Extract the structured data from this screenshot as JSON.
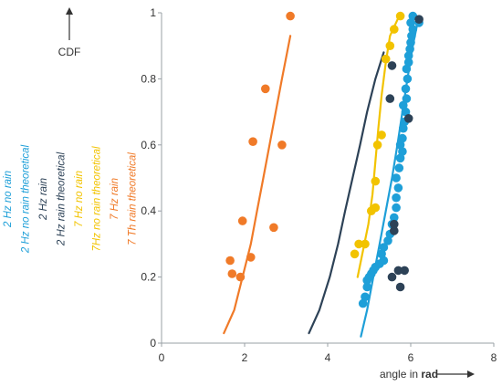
{
  "chart_data": {
    "type": "scatter",
    "x_axis": {
      "title": "angle in ",
      "title_bold": "rad",
      "range": [
        0,
        8
      ],
      "ticks": [
        0,
        2,
        4,
        6,
        8
      ],
      "tick_labels": [
        "0",
        "2",
        "4",
        "6",
        "8"
      ]
    },
    "y_axis": {
      "title": "CDF",
      "range": [
        0,
        1
      ],
      "ticks": [
        0,
        0.2,
        0.4,
        0.6,
        0.8,
        1
      ],
      "tick_labels": [
        "0",
        "0.2",
        "0.4",
        "0.6",
        "0.8",
        "1"
      ]
    },
    "grid": false,
    "legend_position": "left-vertical",
    "series": [
      {
        "name": "2 Hz no rain",
        "kind": "points",
        "color": "#1e9fd8",
        "points": [
          [
            4.85,
            0.12
          ],
          [
            4.9,
            0.14
          ],
          [
            4.95,
            0.17
          ],
          [
            4.95,
            0.19
          ],
          [
            5.0,
            0.2
          ],
          [
            5.05,
            0.21
          ],
          [
            5.1,
            0.22
          ],
          [
            5.15,
            0.23
          ],
          [
            5.25,
            0.24
          ],
          [
            5.35,
            0.25
          ],
          [
            5.3,
            0.27
          ],
          [
            5.35,
            0.29
          ],
          [
            5.45,
            0.31
          ],
          [
            5.5,
            0.33
          ],
          [
            5.55,
            0.36
          ],
          [
            5.6,
            0.38
          ],
          [
            5.65,
            0.41
          ],
          [
            5.65,
            0.44
          ],
          [
            5.7,
            0.47
          ],
          [
            5.65,
            0.5
          ],
          [
            5.72,
            0.53
          ],
          [
            5.75,
            0.56
          ],
          [
            5.8,
            0.58
          ],
          [
            5.75,
            0.6
          ],
          [
            5.8,
            0.62
          ],
          [
            5.82,
            0.65
          ],
          [
            5.85,
            0.67
          ],
          [
            5.88,
            0.7
          ],
          [
            5.82,
            0.72
          ],
          [
            5.9,
            0.74
          ],
          [
            5.88,
            0.77
          ],
          [
            5.92,
            0.8
          ],
          [
            5.9,
            0.83
          ],
          [
            5.95,
            0.85
          ],
          [
            5.95,
            0.87
          ],
          [
            5.98,
            0.89
          ],
          [
            6.0,
            0.91
          ],
          [
            6.02,
            0.93
          ],
          [
            6.05,
            0.95
          ],
          [
            6.0,
            0.97
          ],
          [
            6.05,
            0.99
          ],
          [
            6.2,
            0.97
          ]
        ]
      },
      {
        "name": "2 Hz no rain theoretical",
        "kind": "line",
        "color": "#1e9fd8",
        "points": [
          [
            4.8,
            0.02
          ],
          [
            4.95,
            0.1
          ],
          [
            5.1,
            0.2
          ],
          [
            5.25,
            0.3
          ],
          [
            5.4,
            0.4
          ],
          [
            5.55,
            0.5
          ],
          [
            5.68,
            0.6
          ],
          [
            5.8,
            0.7
          ],
          [
            5.92,
            0.8
          ],
          [
            6.05,
            0.9
          ],
          [
            6.18,
            0.98
          ]
        ]
      },
      {
        "name": "2 Hz rain",
        "kind": "points",
        "color": "#2d4257",
        "points": [
          [
            5.55,
            0.2
          ],
          [
            5.75,
            0.17
          ],
          [
            5.7,
            0.22
          ],
          [
            5.85,
            0.22
          ],
          [
            5.6,
            0.34
          ],
          [
            5.6,
            0.36
          ],
          [
            5.5,
            0.74
          ],
          [
            5.55,
            0.84
          ],
          [
            5.95,
            0.68
          ],
          [
            6.2,
            0.98
          ]
        ]
      },
      {
        "name": "2 Hz rain theoretical",
        "kind": "line",
        "color": "#2d4257",
        "points": [
          [
            3.55,
            0.03
          ],
          [
            3.8,
            0.1
          ],
          [
            4.05,
            0.2
          ],
          [
            4.25,
            0.3
          ],
          [
            4.42,
            0.4
          ],
          [
            4.6,
            0.5
          ],
          [
            4.78,
            0.6
          ],
          [
            4.95,
            0.7
          ],
          [
            5.15,
            0.8
          ],
          [
            5.35,
            0.88
          ]
        ]
      },
      {
        "name": "7 Hz no rain",
        "kind": "points",
        "color": "#f2c300",
        "points": [
          [
            4.65,
            0.27
          ],
          [
            4.75,
            0.3
          ],
          [
            4.9,
            0.3
          ],
          [
            5.05,
            0.4
          ],
          [
            5.15,
            0.41
          ],
          [
            5.15,
            0.49
          ],
          [
            5.2,
            0.6
          ],
          [
            5.3,
            0.63
          ],
          [
            5.4,
            0.86
          ],
          [
            5.5,
            0.9
          ],
          [
            5.6,
            0.95
          ],
          [
            5.75,
            0.99
          ]
        ]
      },
      {
        "name": "7Hz no rain theoretical",
        "kind": "line",
        "color": "#f2c300",
        "points": [
          [
            4.72,
            0.2
          ],
          [
            4.85,
            0.28
          ],
          [
            4.98,
            0.36
          ],
          [
            5.08,
            0.45
          ],
          [
            5.15,
            0.55
          ],
          [
            5.22,
            0.65
          ],
          [
            5.3,
            0.75
          ],
          [
            5.4,
            0.85
          ],
          [
            5.5,
            0.93
          ],
          [
            5.72,
            0.99
          ]
        ]
      },
      {
        "name": "7 Hz rain",
        "kind": "points",
        "color": "#f07a28",
        "points": [
          [
            1.65,
            0.25
          ],
          [
            1.7,
            0.21
          ],
          [
            1.9,
            0.2
          ],
          [
            1.95,
            0.37
          ],
          [
            2.15,
            0.26
          ],
          [
            2.2,
            0.61
          ],
          [
            2.5,
            0.77
          ],
          [
            2.7,
            0.35
          ],
          [
            2.9,
            0.6
          ],
          [
            3.1,
            0.99
          ]
        ]
      },
      {
        "name": "7 Th rain theoretical",
        "kind": "line",
        "color": "#f07a28",
        "points": [
          [
            1.5,
            0.03
          ],
          [
            1.75,
            0.1
          ],
          [
            1.95,
            0.2
          ],
          [
            2.15,
            0.3
          ],
          [
            2.3,
            0.4
          ],
          [
            2.45,
            0.5
          ],
          [
            2.6,
            0.6
          ],
          [
            2.75,
            0.7
          ],
          [
            2.9,
            0.8
          ],
          [
            3.1,
            0.93
          ]
        ]
      }
    ]
  }
}
